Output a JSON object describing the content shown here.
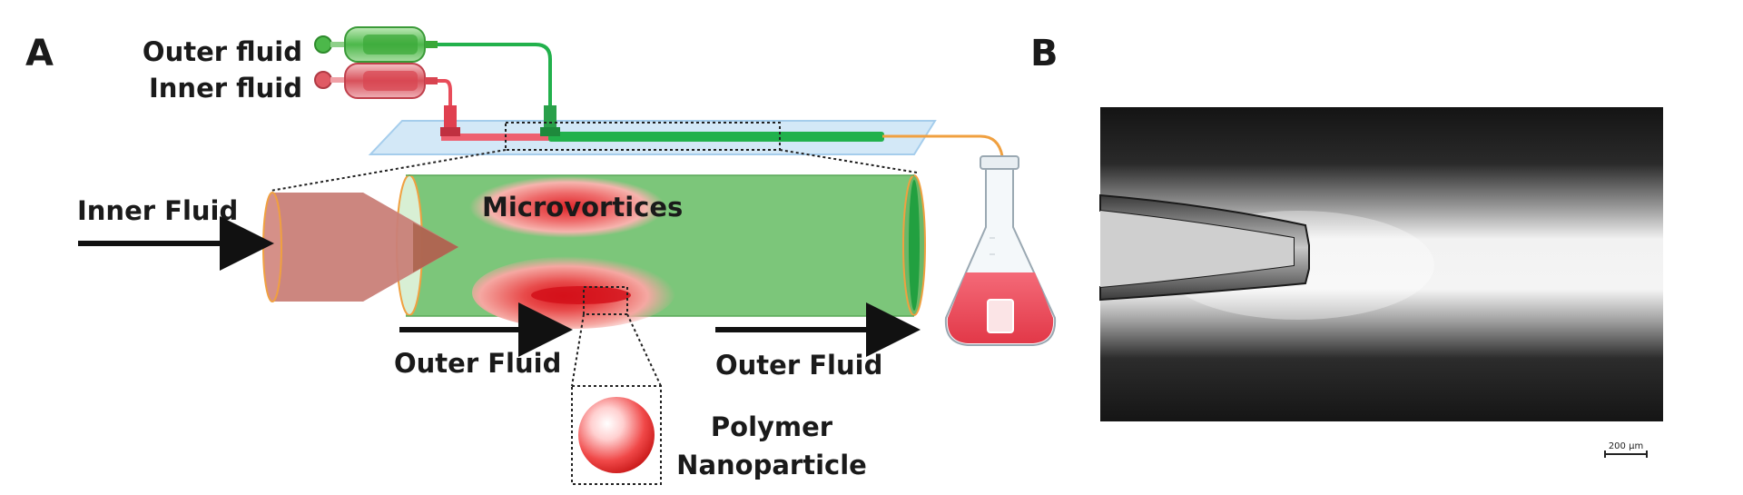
{
  "panel_a": {
    "letter": "A",
    "labels": {
      "outer_fluid_syringe": "Outer fluid",
      "inner_fluid_syringe": "Inner fluid",
      "inner_fluid_inlet": "Inner Fluid",
      "microvortices": "Microvortices",
      "outer_fluid_left": "Outer Fluid",
      "outer_fluid_right": "Outer Fluid",
      "nanoparticle_line1": "Polymer",
      "nanoparticle_line2": "Nanoparticle"
    }
  },
  "panel_b": {
    "letter": "B",
    "scale_bar": "200 µm"
  },
  "colors": {
    "outer_fluid": "#7cc67a",
    "inner_fluid": "#c8706a",
    "vortex_red": "#e02a2a",
    "chip_blue": "#cfe6f7",
    "tube_orange": "#f0a040",
    "green_tube": "#22b14c",
    "red_tube": "#e84c5a"
  }
}
